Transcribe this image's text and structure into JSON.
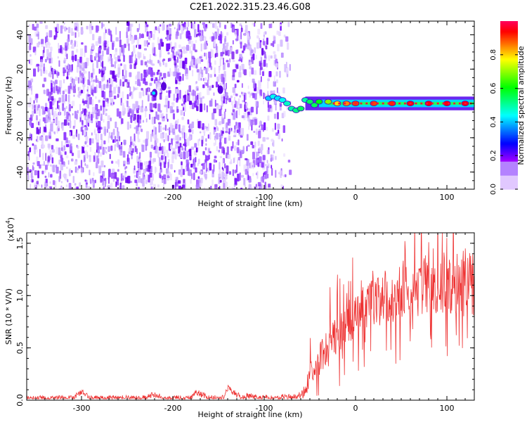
{
  "title": "C2E1.2022.315.23.46.G08",
  "chart_data": [
    {
      "type": "heatmap",
      "title": "C2E1.2022.315.23.46.G08",
      "xlabel": "Height of straight line (km)",
      "ylabel": "Frequency (Hz)",
      "xlim": [
        -360,
        130
      ],
      "ylim": [
        -50,
        48
      ],
      "xticks": [
        -300,
        -200,
        -100,
        0,
        100
      ],
      "xtick_labels": [
        "-300",
        "-200",
        "-100",
        "0",
        "100"
      ],
      "yticks": [
        -40,
        -20,
        0,
        20,
        40
      ],
      "ytick_labels": [
        "-40",
        "-20",
        "0",
        "20",
        "40"
      ],
      "noise_region_x": [
        -360,
        -72
      ],
      "signal_line": {
        "x_start": -97,
        "x_end": 130,
        "frequency": 0
      },
      "signal_points": [
        {
          "x": -95,
          "freq": 3,
          "amp": 0.4
        },
        {
          "x": -90,
          "freq": 4,
          "amp": 0.45
        },
        {
          "x": -85,
          "freq": 3,
          "amp": 0.42
        },
        {
          "x": -80,
          "freq": 2,
          "amp": 0.45
        },
        {
          "x": -75,
          "freq": 0,
          "amp": 0.48
        },
        {
          "x": -70,
          "freq": -3,
          "amp": 0.5
        },
        {
          "x": -65,
          "freq": -4,
          "amp": 0.52
        },
        {
          "x": -60,
          "freq": -3,
          "amp": 0.55
        },
        {
          "x": -55,
          "freq": 2,
          "amp": 0.5
        },
        {
          "x": -50,
          "freq": 1,
          "amp": 0.55
        },
        {
          "x": -45,
          "freq": -1,
          "amp": 0.55
        },
        {
          "x": -40,
          "freq": 1,
          "amp": 0.6
        },
        {
          "x": -30,
          "freq": 1,
          "amp": 0.7
        },
        {
          "x": -20,
          "freq": 0,
          "amp": 0.8
        },
        {
          "x": -10,
          "freq": 0,
          "amp": 0.85
        },
        {
          "x": 0,
          "freq": 0,
          "amp": 0.9
        },
        {
          "x": 20,
          "freq": 0,
          "amp": 0.9
        },
        {
          "x": 40,
          "freq": 0,
          "amp": 0.92
        },
        {
          "x": 60,
          "freq": 0,
          "amp": 0.95
        },
        {
          "x": 80,
          "freq": 0,
          "amp": 0.95
        },
        {
          "x": 100,
          "freq": 0,
          "amp": 0.95
        },
        {
          "x": 120,
          "freq": 0,
          "amp": 0.95
        }
      ],
      "colorbar": {
        "label": "Normalized spectral amplitude",
        "range": [
          0,
          1
        ],
        "ticks": [
          0.0,
          0.2,
          0.4,
          0.6,
          0.8
        ],
        "tick_labels": [
          "0.0",
          "0.2",
          "0.4",
          "0.6",
          "0.8"
        ],
        "colors": [
          "#ffffff",
          "#c080ff",
          "#7f00ff",
          "#0000ff",
          "#00ffff",
          "#00ff00",
          "#ffff00",
          "#ff7f00",
          "#ff0000",
          "#ff0080"
        ]
      }
    },
    {
      "type": "line",
      "xlabel": "Height of straight line (km)",
      "ylabel": "SNR (10 * V/V)",
      "multiplier_label": "(x10",
      "multiplier_exp": "4",
      "multiplier_close": ")",
      "xlim": [
        -360,
        130
      ],
      "ylim": [
        0,
        1.6
      ],
      "xticks": [
        -300,
        -200,
        -100,
        0,
        100
      ],
      "xtick_labels": [
        "-300",
        "-200",
        "-100",
        "0",
        "100"
      ],
      "yticks": [
        0.0,
        0.5,
        1.0,
        1.5
      ],
      "ytick_labels": [
        "0.0",
        "0.5",
        "1.0",
        "1.5"
      ],
      "color": "#ee3333",
      "envelope": {
        "x": [
          -360,
          -310,
          -300,
          -290,
          -230,
          -220,
          -210,
          -180,
          -175,
          -160,
          -145,
          -140,
          -125,
          -120,
          -100,
          -70,
          -60,
          -55,
          -50,
          -45,
          -40,
          -35,
          -30,
          -25,
          -20,
          -15,
          -10,
          0,
          10,
          20,
          30,
          40,
          50,
          60,
          70,
          80,
          90,
          100,
          110,
          120,
          130
        ],
        "values": [
          0.02,
          0.02,
          0.08,
          0.02,
          0.02,
          0.06,
          0.02,
          0.02,
          0.08,
          0.02,
          0.02,
          0.12,
          0.02,
          0.04,
          0.02,
          0.03,
          0.05,
          0.1,
          0.25,
          0.35,
          0.4,
          0.45,
          0.5,
          0.58,
          0.62,
          0.68,
          0.72,
          0.8,
          0.88,
          0.92,
          0.98,
          1.02,
          1.05,
          1.08,
          1.1,
          1.1,
          1.1,
          1.12,
          1.1,
          1.12,
          1.1
        ]
      },
      "noise_amplitude": {
        "x": [
          -360,
          -60,
          -50,
          -30,
          0,
          50,
          130
        ],
        "values": [
          0.015,
          0.02,
          0.08,
          0.12,
          0.14,
          0.18,
          0.2
        ]
      },
      "spikes": [
        {
          "x": -20,
          "value": 1.2
        },
        {
          "x": 60,
          "value": 1.5
        },
        {
          "x": 85,
          "value": 1.45
        },
        {
          "x": 95,
          "value": 1.6
        },
        {
          "x": 100,
          "value": 1.55
        },
        {
          "x": 120,
          "value": 1.45
        }
      ]
    }
  ]
}
